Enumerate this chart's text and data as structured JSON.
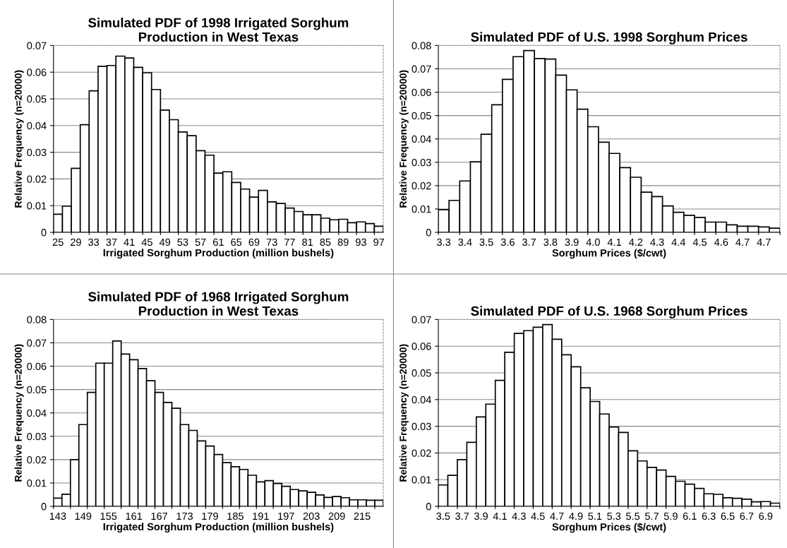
{
  "chart_data": [
    {
      "type": "bar",
      "title": "Simulated PDF of 1998 Irrigated Sorghum\nProduction in West Texas",
      "xlabel": "Irrigated Sorghum Production (million bushels)",
      "ylabel": "Relative Frequency (n=20000)",
      "categories": [
        "25",
        null,
        "29",
        null,
        "33",
        null,
        "37",
        null,
        "41",
        null,
        "45",
        null,
        "49",
        null,
        "53",
        null,
        "57",
        null,
        "61",
        null,
        "65",
        null,
        "69",
        null,
        "73",
        null,
        "77",
        null,
        "81",
        null,
        "85",
        null,
        "89",
        null,
        "93",
        null,
        "97"
      ],
      "values": [
        0.0068,
        0.0098,
        0.024,
        0.0403,
        0.053,
        0.0622,
        0.0625,
        0.066,
        0.0653,
        0.0618,
        0.0598,
        0.0535,
        0.0458,
        0.0422,
        0.0376,
        0.0362,
        0.0306,
        0.0289,
        0.0222,
        0.0227,
        0.0187,
        0.0162,
        0.0132,
        0.0157,
        0.0114,
        0.0108,
        0.0091,
        0.0078,
        0.0066,
        0.0066,
        0.0053,
        0.0047,
        0.0049,
        0.0036,
        0.0039,
        0.0033,
        0.0023
      ],
      "color": "#ffffff",
      "ylim": [
        0,
        0.07
      ],
      "yticks": [
        0,
        0.01,
        0.02,
        0.03,
        0.04,
        0.05,
        0.06,
        0.07
      ],
      "grid": "y"
    },
    {
      "type": "bar",
      "title": "Simulated PDF of U.S. 1998 Sorghum Prices",
      "xlabel": "Sorghum Prices ($/cwt)",
      "ylabel": "Relative Frequency (n=20000)",
      "categories": [
        "3.3",
        null,
        "3.4",
        null,
        "3.5",
        null,
        "3.6",
        null,
        "3.7",
        null,
        "3.8",
        null,
        "3.9",
        null,
        "4.0",
        null,
        "4.1",
        null,
        "4.2",
        null,
        "4.3",
        null,
        "4.4",
        null,
        "4.5",
        null,
        "4.6",
        null,
        "4.7",
        null,
        "4.7",
        null
      ],
      "values": [
        0.0097,
        0.0137,
        0.022,
        0.0302,
        0.042,
        0.0546,
        0.0655,
        0.0752,
        0.0778,
        0.0744,
        0.0742,
        0.0673,
        0.061,
        0.0527,
        0.0452,
        0.0386,
        0.0338,
        0.0277,
        0.0236,
        0.0172,
        0.0153,
        0.0113,
        0.0086,
        0.0073,
        0.0064,
        0.0044,
        0.0044,
        0.0032,
        0.0026,
        0.0026,
        0.0023,
        0.0018
      ],
      "color": "#ffffff",
      "ylim": [
        0,
        0.08
      ],
      "yticks": [
        0,
        0.01,
        0.02,
        0.03,
        0.04,
        0.05,
        0.06,
        0.07,
        0.08
      ],
      "grid": "y"
    },
    {
      "type": "bar",
      "title": "Simulated PDF of 1968 Irrigated Sorghum\nProduction in West Texas",
      "xlabel": "Irrigated Sorghum Production (million bushels)",
      "ylabel": "Relative Frequency (n=20000)",
      "categories": [
        "143",
        null,
        null,
        "149",
        null,
        null,
        "155",
        null,
        null,
        "161",
        null,
        null,
        "167",
        null,
        null,
        "173",
        null,
        null,
        "179",
        null,
        null,
        "185",
        null,
        null,
        "191",
        null,
        null,
        "197",
        null,
        null,
        "203",
        null,
        null,
        "209",
        null,
        null,
        "215",
        null,
        null
      ],
      "values": [
        0.0035,
        0.0052,
        0.02,
        0.035,
        0.0488,
        0.0613,
        0.0613,
        0.0708,
        0.0652,
        0.0628,
        0.059,
        0.0538,
        0.0488,
        0.0445,
        0.042,
        0.035,
        0.0325,
        0.028,
        0.0258,
        0.0222,
        0.0187,
        0.017,
        0.0158,
        0.0133,
        0.0105,
        0.011,
        0.0098,
        0.0086,
        0.0072,
        0.0066,
        0.006,
        0.0049,
        0.0038,
        0.0042,
        0.0037,
        0.0028,
        0.0028,
        0.0026,
        0.0026
      ],
      "color": "#ffffff",
      "ylim": [
        0,
        0.08
      ],
      "yticks": [
        0,
        0.01,
        0.02,
        0.03,
        0.04,
        0.05,
        0.06,
        0.07,
        0.08
      ],
      "grid": "y"
    },
    {
      "type": "bar",
      "title": "Simulated PDF of U.S. 1968 Sorghum Prices",
      "xlabel": "Sorghum Prices ($/cwt)",
      "ylabel": "Relative Frequency (n=20000)",
      "categories": [
        "3.5",
        null,
        "3.7",
        null,
        "3.9",
        null,
        "4.1",
        null,
        "4.3",
        null,
        "4.5",
        null,
        "4.7",
        null,
        "4.9",
        null,
        "5.1",
        null,
        "5.3",
        null,
        "5.5",
        null,
        "5.7",
        null,
        "5.9",
        null,
        "6.1",
        null,
        "6.3",
        null,
        "6.5",
        null,
        "6.7",
        null,
        "6.9",
        null
      ],
      "values": [
        0.008,
        0.0116,
        0.0175,
        0.024,
        0.0335,
        0.0383,
        0.0472,
        0.0577,
        0.0648,
        0.0658,
        0.0671,
        0.0681,
        0.0626,
        0.0568,
        0.0523,
        0.0444,
        0.0393,
        0.0346,
        0.0297,
        0.0277,
        0.0208,
        0.017,
        0.0146,
        0.0136,
        0.0112,
        0.0094,
        0.0083,
        0.0067,
        0.0047,
        0.0045,
        0.0032,
        0.003,
        0.0027,
        0.0017,
        0.0018,
        0.0012
      ],
      "color": "#ffffff",
      "ylim": [
        0,
        0.07
      ],
      "yticks": [
        0,
        0.01,
        0.02,
        0.03,
        0.04,
        0.05,
        0.06,
        0.07
      ],
      "grid": "y"
    }
  ]
}
